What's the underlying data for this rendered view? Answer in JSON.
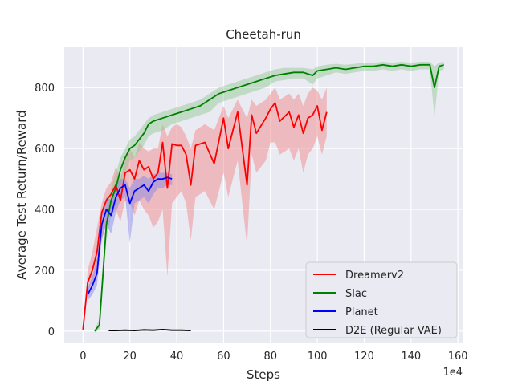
{
  "chart_data": {
    "type": "line",
    "title": "Cheetah-run",
    "xlabel": "Steps",
    "ylabel": "Average Test Return/Reward",
    "x_scale_note": "1e4",
    "xlim": [
      -8,
      162
    ],
    "ylim": [
      -40,
      935
    ],
    "xticks": [
      0,
      20,
      40,
      60,
      80,
      100,
      120,
      140,
      160
    ],
    "yticks": [
      0,
      200,
      400,
      600,
      800
    ],
    "grid": true,
    "legend_position": "lower-right",
    "series": [
      {
        "name": "Dreamerv2",
        "color": "#ff0000",
        "band_color": "#f08080",
        "x": [
          0,
          2,
          4,
          6,
          8,
          10,
          12,
          14,
          16,
          18,
          20,
          22,
          24,
          26,
          28,
          30,
          32,
          34,
          36,
          38,
          40,
          42,
          44,
          46,
          48,
          52,
          56,
          60,
          62,
          66,
          70,
          72,
          74,
          78,
          80,
          82,
          84,
          88,
          90,
          92,
          94,
          96,
          98,
          100,
          102,
          104
        ],
        "y": [
          5,
          160,
          200,
          260,
          390,
          430,
          450,
          480,
          430,
          520,
          530,
          500,
          560,
          530,
          540,
          500,
          520,
          620,
          470,
          615,
          610,
          610,
          580,
          480,
          610,
          620,
          550,
          700,
          600,
          720,
          480,
          710,
          650,
          700,
          730,
          750,
          690,
          720,
          670,
          710,
          650,
          700,
          710,
          740,
          660,
          720
        ],
        "upper": [
          8,
          200,
          260,
          340,
          420,
          470,
          490,
          540,
          500,
          570,
          600,
          570,
          620,
          600,
          590,
          600,
          600,
          680,
          640,
          670,
          680,
          670,
          640,
          600,
          660,
          680,
          660,
          740,
          700,
          760,
          700,
          760,
          740,
          760,
          780,
          800,
          760,
          780,
          760,
          780,
          740,
          780,
          800,
          790,
          760,
          800
        ],
        "lower": [
          2,
          130,
          160,
          200,
          300,
          360,
          380,
          400,
          360,
          430,
          420,
          380,
          430,
          400,
          380,
          340,
          360,
          400,
          180,
          420,
          440,
          460,
          420,
          300,
          440,
          460,
          400,
          520,
          440,
          560,
          280,
          580,
          520,
          560,
          620,
          620,
          580,
          600,
          560,
          600,
          520,
          580,
          600,
          640,
          580,
          640
        ]
      },
      {
        "name": "Slac",
        "color": "#008000",
        "band_color": "#90c890",
        "x": [
          5,
          7,
          10,
          12,
          14,
          16,
          18,
          20,
          22,
          24,
          26,
          28,
          30,
          34,
          38,
          42,
          46,
          50,
          54,
          58,
          62,
          66,
          70,
          74,
          78,
          82,
          86,
          90,
          94,
          98,
          100,
          104,
          108,
          112,
          116,
          120,
          124,
          128,
          132,
          136,
          140,
          144,
          148,
          150,
          152,
          154
        ],
        "y": [
          0,
          20,
          350,
          430,
          470,
          530,
          570,
          600,
          610,
          630,
          650,
          680,
          690,
          700,
          710,
          720,
          730,
          740,
          760,
          780,
          790,
          800,
          810,
          820,
          830,
          840,
          845,
          850,
          850,
          840,
          855,
          860,
          865,
          860,
          865,
          870,
          870,
          875,
          870,
          875,
          870,
          875,
          875,
          800,
          870,
          875
        ],
        "upper": [
          5,
          40,
          400,
          470,
          520,
          570,
          600,
          630,
          640,
          660,
          680,
          700,
          710,
          720,
          730,
          740,
          750,
          760,
          780,
          800,
          810,
          820,
          830,
          840,
          850,
          860,
          865,
          865,
          865,
          860,
          870,
          875,
          878,
          875,
          878,
          882,
          882,
          885,
          882,
          885,
          882,
          885,
          885,
          870,
          882,
          885
        ],
        "lower": [
          -5,
          5,
          300,
          380,
          420,
          480,
          520,
          560,
          570,
          590,
          610,
          640,
          650,
          660,
          680,
          690,
          700,
          710,
          720,
          750,
          760,
          770,
          780,
          790,
          800,
          820,
          825,
          830,
          830,
          810,
          830,
          840,
          850,
          845,
          850,
          855,
          855,
          860,
          855,
          860,
          855,
          860,
          860,
          705,
          855,
          860
        ]
      },
      {
        "name": "Planet",
        "color": "#0000ff",
        "band_color": "#8080e8",
        "x": [
          2,
          4,
          6,
          8,
          10,
          12,
          14,
          16,
          18,
          20,
          22,
          24,
          26,
          28,
          30,
          32,
          34,
          36,
          38
        ],
        "y": [
          120,
          150,
          190,
          350,
          400,
          380,
          440,
          470,
          480,
          420,
          460,
          470,
          480,
          460,
          490,
          500,
          500,
          505,
          500
        ],
        "upper": [
          140,
          180,
          240,
          390,
          440,
          430,
          480,
          500,
          500,
          470,
          500,
          500,
          510,
          500,
          515,
          520,
          520,
          520,
          515
        ],
        "lower": [
          100,
          120,
          150,
          300,
          350,
          320,
          390,
          430,
          440,
          290,
          420,
          430,
          440,
          420,
          450,
          470,
          470,
          480,
          480
        ]
      },
      {
        "name": "D2E (Regular VAE)",
        "color": "#000000",
        "band_color": "#808080",
        "x": [
          11,
          14,
          18,
          22,
          26,
          30,
          34,
          38,
          42,
          46
        ],
        "y": [
          2,
          2,
          3,
          2,
          4,
          3,
          5,
          3,
          3,
          2
        ],
        "upper": [
          3,
          3,
          4,
          3,
          5,
          4,
          6,
          4,
          4,
          3
        ],
        "lower": [
          1,
          1,
          2,
          1,
          3,
          2,
          4,
          2,
          2,
          1
        ]
      }
    ]
  }
}
